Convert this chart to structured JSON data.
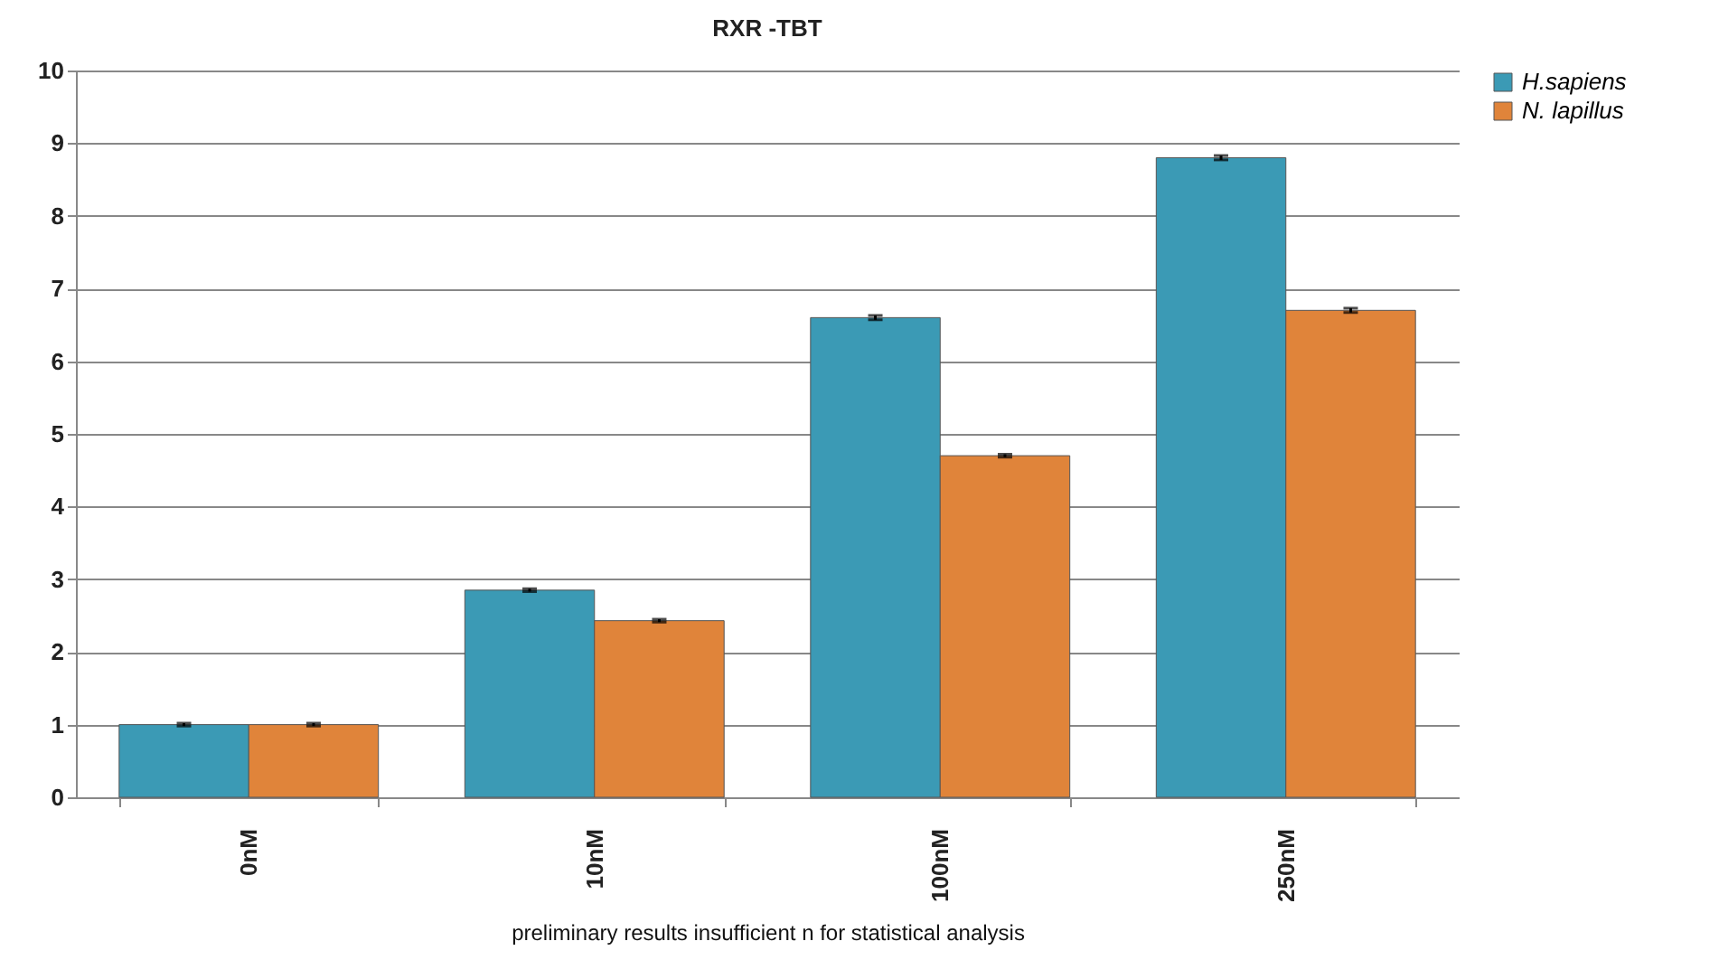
{
  "chart_data": {
    "type": "bar",
    "title": "RXR -TBT",
    "xlabel": "preliminary results insufficient n for statistical analysis",
    "categories": [
      "0nM",
      "10nM",
      "100nM",
      "250nM"
    ],
    "series": [
      {
        "name": "H.sapiens",
        "color": "#3b9ab5",
        "values": [
          1,
          2.85,
          6.6,
          8.8
        ],
        "errors": [
          0.02,
          0.02,
          0.03,
          0.03
        ]
      },
      {
        "name": "N. lapillus",
        "color": "#e0843a",
        "values": [
          1,
          2.43,
          4.7,
          6.7
        ],
        "errors": [
          0.02,
          0.02,
          0.02,
          0.03
        ]
      }
    ],
    "ylim": [
      0,
      10
    ],
    "yticks": [
      0,
      1,
      2,
      3,
      4,
      5,
      6,
      7,
      8,
      9,
      10
    ],
    "grid": "y",
    "legend": "right"
  }
}
